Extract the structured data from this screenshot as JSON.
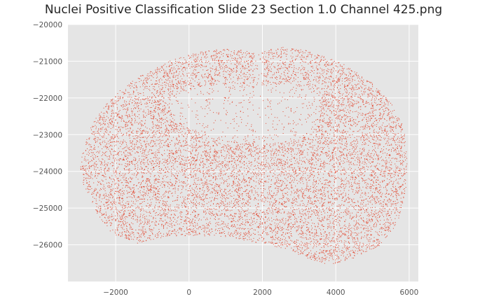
{
  "chart_data": {
    "type": "scatter",
    "title": "Nuclei Positive Classification Slide  23 Section 1.0 Channel 425.png",
    "xlabel": "",
    "ylabel": "",
    "xlim": [
      -3300,
      6250
    ],
    "ylim": [
      -27000,
      -20000
    ],
    "x_ticks": [
      -2000,
      0,
      2000,
      4000,
      6000
    ],
    "y_ticks": [
      -20000,
      -21000,
      -22000,
      -23000,
      -24000,
      -25000,
      -26000
    ],
    "x_tick_labels": [
      "−2000",
      "0",
      "2000",
      "4000",
      "6000"
    ],
    "y_tick_labels": [
      "−20000",
      "−21000",
      "−22000",
      "−23000",
      "−24000",
      "−25000",
      "−26000"
    ],
    "grid": true,
    "point_color": "#E24A33",
    "background_color": "#E5E5E5",
    "grid_color": "#FFFFFF",
    "outline": [
      [
        -2850,
        -23250
      ],
      [
        -2700,
        -22800
      ],
      [
        -2400,
        -22300
      ],
      [
        -1900,
        -21800
      ],
      [
        -1300,
        -21350
      ],
      [
        -600,
        -21000
      ],
      [
        200,
        -20750
      ],
      [
        900,
        -20650
      ],
      [
        1600,
        -20700
      ],
      [
        1900,
        -20800
      ],
      [
        2100,
        -20700
      ],
      [
        2500,
        -20600
      ],
      [
        3200,
        -20700
      ],
      [
        4100,
        -21000
      ],
      [
        4900,
        -21500
      ],
      [
        5500,
        -22100
      ],
      [
        5850,
        -22800
      ],
      [
        5950,
        -23600
      ],
      [
        5900,
        -24500
      ],
      [
        5700,
        -25400
      ],
      [
        5200,
        -26000
      ],
      [
        4500,
        -26350
      ],
      [
        3800,
        -26550
      ],
      [
        3200,
        -26350
      ],
      [
        2600,
        -26100
      ],
      [
        1700,
        -25900
      ],
      [
        700,
        -25750
      ],
      [
        -500,
        -25750
      ],
      [
        -1400,
        -25950
      ],
      [
        -2100,
        -25700
      ],
      [
        -2550,
        -25100
      ],
      [
        -2850,
        -24500
      ],
      [
        -3000,
        -23900
      ]
    ],
    "inner_void": [
      [
        -400,
        -21900
      ],
      [
        300,
        -21700
      ],
      [
        1100,
        -21600
      ],
      [
        1700,
        -21700
      ],
      [
        2100,
        -21650
      ],
      [
        2700,
        -21600
      ],
      [
        3300,
        -21750
      ],
      [
        3600,
        -22100
      ],
      [
        3500,
        -22700
      ],
      [
        3000,
        -23100
      ],
      [
        2500,
        -23200
      ],
      [
        1900,
        -23250
      ],
      [
        1200,
        -23200
      ],
      [
        600,
        -23050
      ],
      [
        0,
        -22800
      ],
      [
        -500,
        -22400
      ]
    ]
  }
}
